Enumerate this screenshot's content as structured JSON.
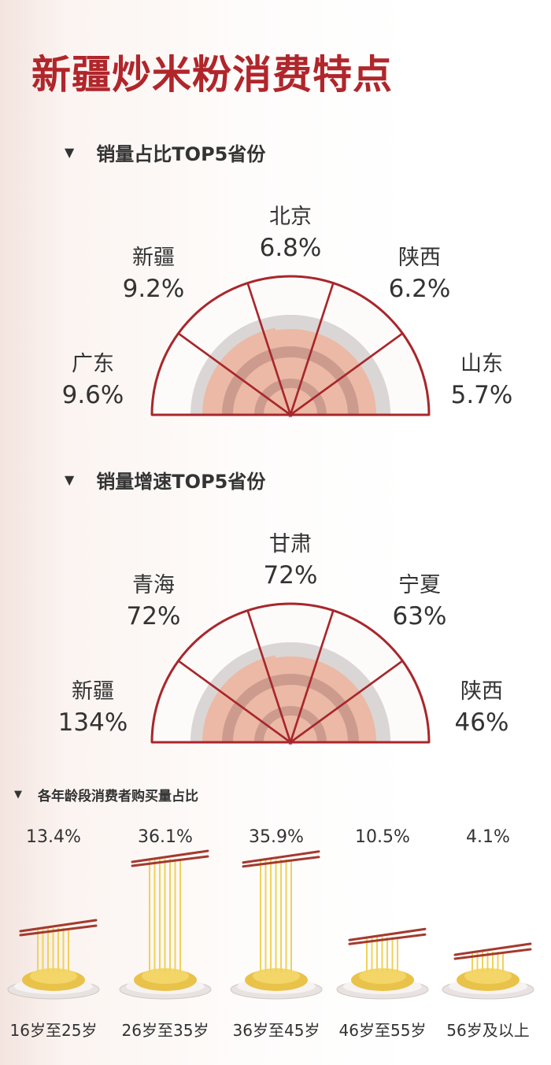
{
  "title": "新疆炒米粉消费特点",
  "colors": {
    "title": "#b0262b",
    "outline": "#a8272c",
    "segment_fill": "#fdfbfa",
    "ring_light": "#dad6d5",
    "ring_mid": "#cc9b8e",
    "ring_core": "#ebb9a5",
    "noodle": "#f0d258",
    "chopstick": "#a33a2e"
  },
  "sections": {
    "share": {
      "heading": "销量占比TOP5省份"
    },
    "growth": {
      "heading": "销量增速TOP5省份"
    },
    "age": {
      "heading": "各年龄段消费者购买量占比"
    }
  },
  "chart_data": [
    {
      "type": "pie",
      "title": "销量占比TOP5省份",
      "categories": [
        "广东",
        "新疆",
        "北京",
        "陕西",
        "山东"
      ],
      "values": [
        9.6,
        9.2,
        6.8,
        6.2,
        5.7
      ],
      "labels": [
        "9.6%",
        "9.2%",
        "6.8%",
        "6.2%",
        "5.7%"
      ],
      "unit": "%"
    },
    {
      "type": "pie",
      "title": "销量增速TOP5省份",
      "categories": [
        "新疆",
        "青海",
        "甘肃",
        "宁夏",
        "陕西"
      ],
      "values": [
        134,
        72,
        72,
        63,
        46
      ],
      "labels": [
        "134%",
        "72%",
        "72%",
        "63%",
        "46%"
      ],
      "unit": "%"
    },
    {
      "type": "bar",
      "title": "各年龄段消费者购买量占比",
      "categories": [
        "16岁至25岁",
        "26岁至35岁",
        "36岁至45岁",
        "46岁至55岁",
        "56岁及以上"
      ],
      "values": [
        13.4,
        36.1,
        35.9,
        10.5,
        4.1
      ],
      "labels": [
        "13.4%",
        "36.1%",
        "35.9%",
        "10.5%",
        "4.1%"
      ],
      "unit": "%"
    }
  ]
}
